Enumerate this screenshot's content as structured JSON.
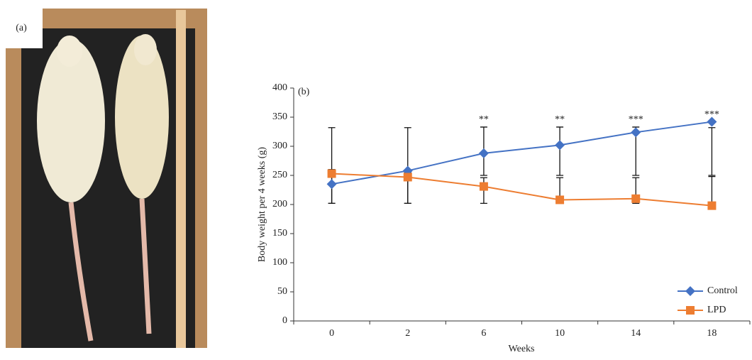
{
  "panel_a": {
    "label": "(a)"
  },
  "chart_data": {
    "type": "line",
    "panel_label": "(b)",
    "x_label": "Weeks",
    "y_label": "Body weight per 4 weeks (g)",
    "categories": [
      "0",
      "2",
      "6",
      "10",
      "14",
      "18"
    ],
    "series": [
      {
        "name": "Control",
        "color": "#4472c4",
        "marker": "diamond",
        "values": [
          235,
          258,
          288,
          302,
          324,
          342
        ],
        "error_upper": [
          332,
          332,
          333,
          333,
          333,
          332
        ],
        "error_lower": [
          202,
          202,
          250,
          250,
          250,
          250
        ]
      },
      {
        "name": "LPD",
        "color": "#ed7d31",
        "marker": "square",
        "values": [
          253,
          247,
          231,
          208,
          210,
          198
        ],
        "error_upper": [
          260,
          255,
          246,
          246,
          246,
          248
        ],
        "error_lower": [
          202,
          202,
          202,
          202,
          202,
          198
        ]
      }
    ],
    "annotations": [
      null,
      null,
      "**",
      "**",
      "***",
      "***"
    ],
    "ylim": [
      0,
      400
    ],
    "yticks": [
      0,
      50,
      100,
      150,
      200,
      250,
      300,
      350,
      400
    ],
    "legend": "lower-right",
    "grid": false
  }
}
